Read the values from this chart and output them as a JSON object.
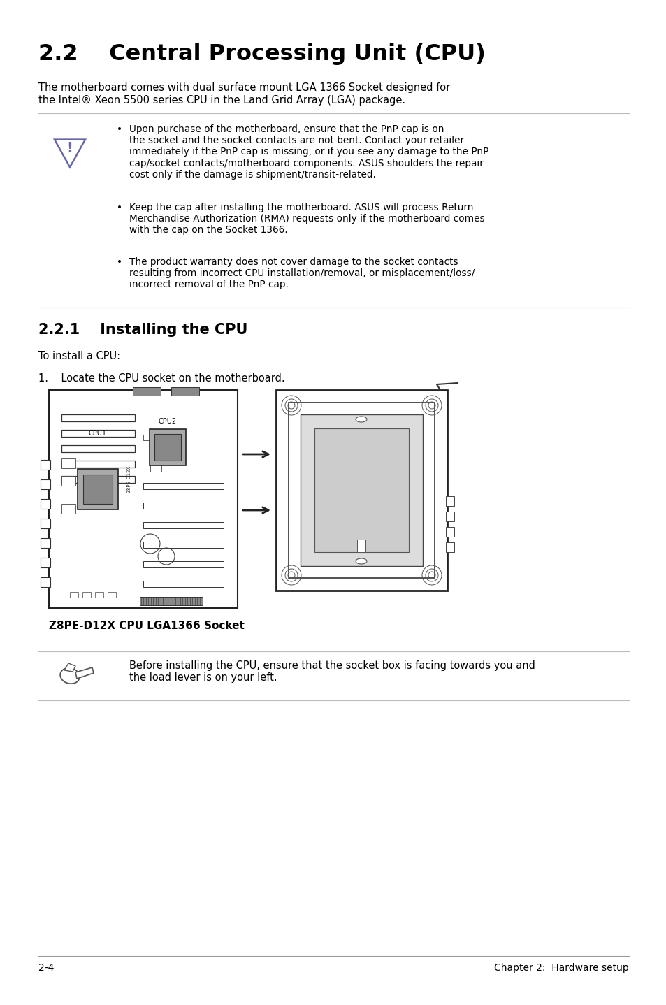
{
  "bg_color": "#ffffff",
  "text_color": "#000000",
  "title": "2.2    Central Processing Unit (CPU)",
  "intro_text1": "The motherboard comes with dual surface mount LGA 1366 Socket designed for",
  "intro_text2": "the Intel® Xeon 5500 series CPU in the Land Grid Array (LGA) package.",
  "bullet1": "Upon purchase of the motherboard, ensure that the PnP cap is on\nthe socket and the socket contacts are not bent. Contact your retailer\nimmediately if the PnP cap is missing, or if you see any damage to the PnP\ncap/socket contacts/motherboard components. ASUS shoulders the repair\ncost only if the damage is shipment/transit-related.",
  "bullet2": "Keep the cap after installing the motherboard. ASUS will process Return\nMerchandise Authorization (RMA) requests only if the motherboard comes\nwith the cap on the Socket 1366.",
  "bullet3": "The product warranty does not cover damage to the socket contacts\nresulting from incorrect CPU installation/removal, or misplacement/loss/\nincorrect removal of the PnP cap.",
  "section221": "2.2.1    Installing the CPU",
  "to_install": "To install a CPU:",
  "step1": "1.    Locate the CPU socket on the motherboard.",
  "caption": "Z8PE-D12X CPU LGA1366 Socket",
  "note_text": "Before installing the CPU, ensure that the socket box is facing towards you and\nthe load lever is on your left.",
  "footer_left": "2-4",
  "footer_right": "Chapter 2:  Hardware setup"
}
